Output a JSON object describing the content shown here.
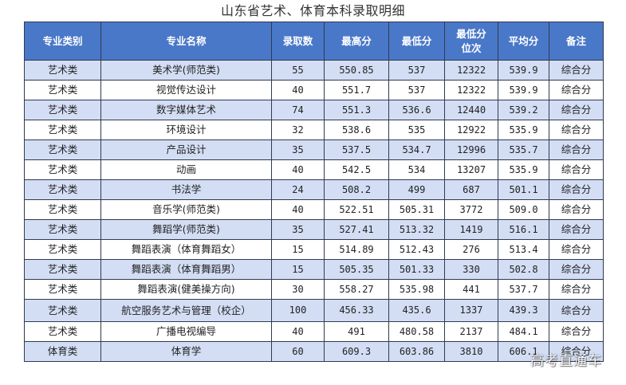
{
  "title": "山东省艺术、体育本科录取明细",
  "headers": {
    "category": "专业类别",
    "major": "专业名称",
    "count": "录取数",
    "max": "最高分",
    "min": "最低分",
    "rank_line1": "最低分",
    "rank_line2": "位次",
    "avg": "平均分",
    "note": "备注"
  },
  "rows": [
    {
      "category": "艺术类",
      "major": "美术学(师范类)",
      "count": "55",
      "max": "550.85",
      "min": "537",
      "rank": "12322",
      "avg": "539.9",
      "note": "综合分"
    },
    {
      "category": "艺术类",
      "major": "视觉传达设计",
      "count": "40",
      "max": "551.7",
      "min": "537",
      "rank": "12322",
      "avg": "539.9",
      "note": "综合分"
    },
    {
      "category": "艺术类",
      "major": "数字媒体艺术",
      "count": "74",
      "max": "551.3",
      "min": "536.6",
      "rank": "12440",
      "avg": "539.2",
      "note": "综合分"
    },
    {
      "category": "艺术类",
      "major": "环境设计",
      "count": "32",
      "max": "538.6",
      "min": "535",
      "rank": "12922",
      "avg": "535.9",
      "note": "综合分"
    },
    {
      "category": "艺术类",
      "major": "产品设计",
      "count": "35",
      "max": "537.5",
      "min": "534.7",
      "rank": "12996",
      "avg": "535.7",
      "note": "综合分"
    },
    {
      "category": "艺术类",
      "major": "动画",
      "count": "40",
      "max": "542.5",
      "min": "534",
      "rank": "13207",
      "avg": "535.9",
      "note": "综合分"
    },
    {
      "category": "艺术类",
      "major": "书法学",
      "count": "24",
      "max": "508.2",
      "min": "499",
      "rank": "687",
      "avg": "501.1",
      "note": "综合分"
    },
    {
      "category": "艺术类",
      "major": "音乐学(师范类)",
      "count": "40",
      "max": "522.51",
      "min": "505.31",
      "rank": "3772",
      "avg": "509.0",
      "note": "综合分"
    },
    {
      "category": "艺术类",
      "major": "舞蹈学(师范类)",
      "count": "35",
      "max": "527.41",
      "min": "513.32",
      "rank": "1419",
      "avg": "516.1",
      "note": "综合分"
    },
    {
      "category": "艺术类",
      "major": "舞蹈表演（体育舞蹈女）",
      "count": "15",
      "max": "514.89",
      "min": "512.43",
      "rank": "276",
      "avg": "513.4",
      "note": "综合分"
    },
    {
      "category": "艺术类",
      "major": "舞蹈表演（体育舞蹈男）",
      "count": "15",
      "max": "505.35",
      "min": "501.33",
      "rank": "330",
      "avg": "502.8",
      "note": "综合分"
    },
    {
      "category": "艺术类",
      "major": "舞蹈表演(健美操方向)",
      "count": "30",
      "max": "558.27",
      "min": "535.98",
      "rank": "441",
      "avg": "537.7",
      "note": "综合分"
    },
    {
      "category": "艺术类",
      "major": "航空服务艺术与管理（校企）",
      "count": "100",
      "max": "456.33",
      "min": "435.6",
      "rank": "1337",
      "avg": "439.3",
      "note": "综合分"
    },
    {
      "category": "艺术类",
      "major": "广播电视编导",
      "count": "40",
      "max": "491",
      "min": "480.58",
      "rank": "2137",
      "avg": "484.1",
      "note": "综合分"
    },
    {
      "category": "体育类",
      "major": "体育学",
      "count": "60",
      "max": "609.3",
      "min": "603.86",
      "rank": "3810",
      "avg": "606.1",
      "note": "综合分"
    }
  ],
  "watermark": "高考直通车",
  "colors": {
    "header_bg": "#4a78c8",
    "stripe_bg": "#d3def5",
    "border": "#2f3b4e"
  }
}
